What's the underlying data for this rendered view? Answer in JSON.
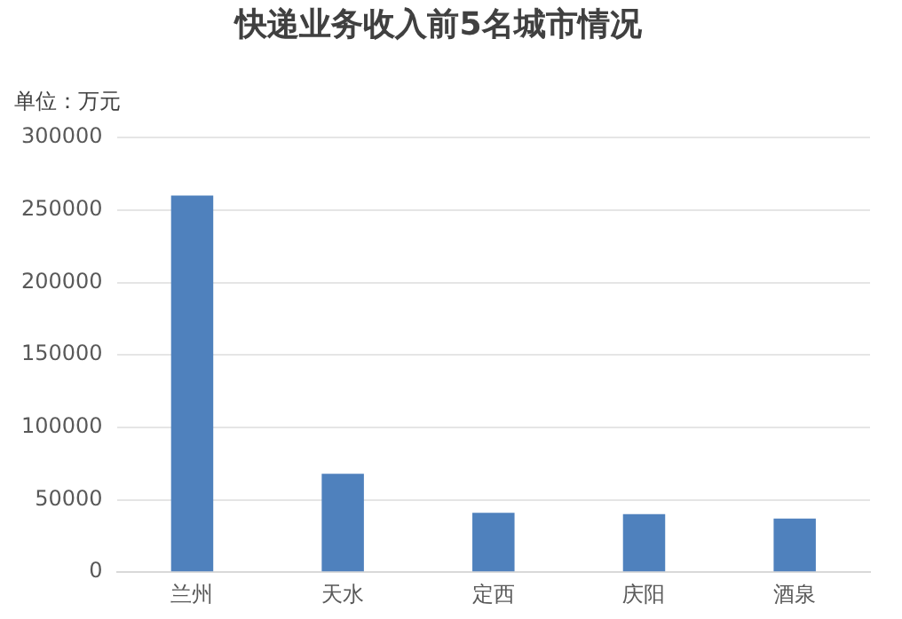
{
  "chart_data": {
    "type": "bar",
    "title": "快递业务收入前5名城市情况",
    "ylabel": "单位：万元",
    "categories": [
      "兰州",
      "天水",
      "定西",
      "庆阳",
      "酒泉"
    ],
    "values": [
      260000,
      68000,
      41000,
      40000,
      37000
    ],
    "color": "#4f81bd",
    "ylim": [
      0,
      300000
    ],
    "yticks": [
      0,
      50000,
      100000,
      150000,
      200000,
      250000,
      300000
    ],
    "grid": "y",
    "legend": false
  }
}
